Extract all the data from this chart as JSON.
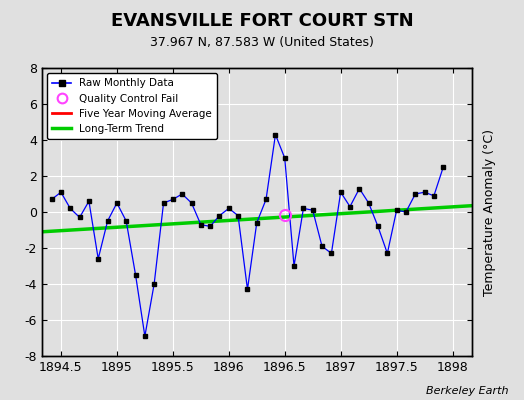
{
  "title": "EVANSVILLE FORT COURT STN",
  "subtitle": "37.967 N, 87.583 W (United States)",
  "ylabel": "Temperature Anomaly (°C)",
  "watermark": "Berkeley Earth",
  "xlim": [
    1894.33,
    1898.17
  ],
  "ylim": [
    -8,
    8
  ],
  "xticks": [
    1894.5,
    1895.0,
    1895.5,
    1896.0,
    1896.5,
    1897.0,
    1897.5,
    1898.0
  ],
  "yticks": [
    -8,
    -6,
    -4,
    -2,
    0,
    2,
    4,
    6,
    8
  ],
  "bg_color": "#e0e0e0",
  "plot_bg_color": "#e0e0e0",
  "raw_x": [
    1894.417,
    1894.5,
    1894.583,
    1894.667,
    1894.75,
    1894.833,
    1894.917,
    1895.0,
    1895.083,
    1895.167,
    1895.25,
    1895.333,
    1895.417,
    1895.5,
    1895.583,
    1895.667,
    1895.75,
    1895.833,
    1895.917,
    1896.0,
    1896.083,
    1896.167,
    1896.25,
    1896.333,
    1896.417,
    1896.5,
    1896.583,
    1896.667,
    1896.75,
    1896.833,
    1896.917,
    1897.0,
    1897.083,
    1897.167,
    1897.25,
    1897.333,
    1897.417,
    1897.5,
    1897.583,
    1897.667,
    1897.75,
    1897.833,
    1897.917
  ],
  "raw_y": [
    0.7,
    1.1,
    0.2,
    -0.3,
    0.6,
    -2.6,
    -0.5,
    0.5,
    -0.5,
    -3.5,
    -6.9,
    -4.0,
    0.5,
    0.7,
    1.0,
    0.5,
    -0.7,
    -0.8,
    -0.2,
    0.2,
    -0.2,
    -4.3,
    -0.6,
    0.7,
    4.3,
    3.0,
    -3.0,
    0.2,
    0.1,
    -1.9,
    -2.3,
    1.1,
    0.3,
    1.3,
    0.5,
    -0.8,
    -2.3,
    0.1,
    0.0,
    1.0,
    1.1,
    0.9,
    2.5
  ],
  "qc_fail_x": [
    1896.5
  ],
  "qc_fail_y": [
    -0.15
  ],
  "trend_x": [
    1894.33,
    1898.17
  ],
  "trend_y": [
    -1.1,
    0.35
  ],
  "raw_color": "#0000ff",
  "raw_marker_color": "#000000",
  "qc_color": "#ff44ff",
  "trend_color": "#00cc00",
  "moving_avg_color": "#ff0000",
  "legend_loc": "upper left",
  "title_fontsize": 13,
  "subtitle_fontsize": 9,
  "tick_fontsize": 9,
  "ylabel_fontsize": 9
}
